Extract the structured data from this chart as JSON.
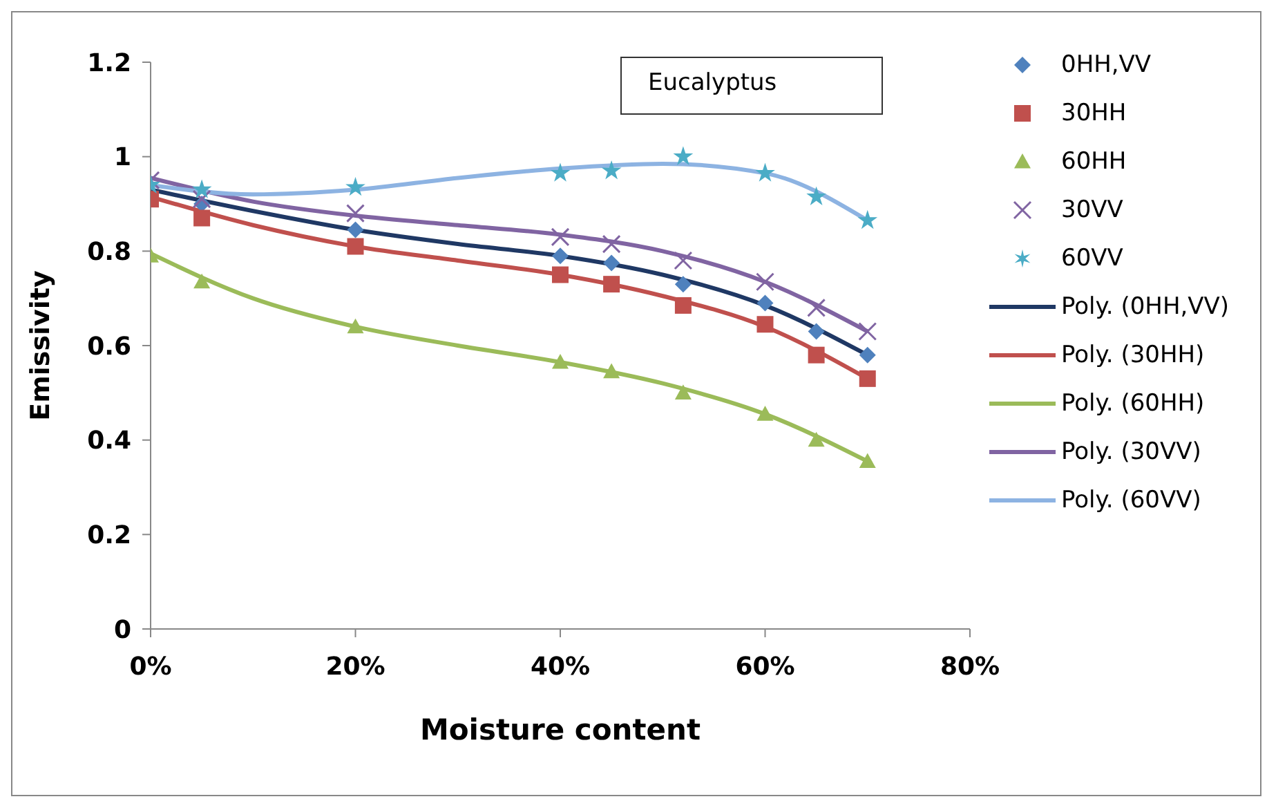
{
  "chart_data": {
    "type": "scatter",
    "xlabel": "Moisture content",
    "ylabel": "Emissivity",
    "annotations": [
      "Eucalyptus"
    ],
    "x": [
      0,
      5,
      20,
      40,
      45,
      52,
      60,
      65,
      70
    ],
    "xlim": [
      0,
      80
    ],
    "xticks": [
      {
        "value": 0,
        "label": "0%"
      },
      {
        "value": 20,
        "label": "20%"
      },
      {
        "value": 40,
        "label": "40%"
      },
      {
        "value": 60,
        "label": "60%"
      },
      {
        "value": 80,
        "label": "80%"
      }
    ],
    "ylim": [
      0,
      1.2
    ],
    "yticks": [
      {
        "value": 0,
        "label": "0"
      },
      {
        "value": 0.2,
        "label": "0.2"
      },
      {
        "value": 0.4,
        "label": "0.4"
      },
      {
        "value": 0.6,
        "label": "0.6"
      },
      {
        "value": 0.8,
        "label": "0.8"
      },
      {
        "value": 1,
        "label": "1"
      },
      {
        "value": 1.2,
        "label": "1.2"
      }
    ],
    "grid": false,
    "legend": "right",
    "series": [
      {
        "name": "0HH,VV",
        "color": "#4f81bd",
        "marker": "diamond",
        "values": [
          null,
          0.9,
          0.845,
          0.79,
          0.775,
          0.73,
          0.69,
          0.63,
          0.58
        ]
      },
      {
        "name": "30HH",
        "color": "#c0504d",
        "marker": "square",
        "values": [
          0.91,
          0.87,
          0.81,
          0.75,
          0.73,
          0.685,
          0.645,
          0.58,
          0.53
        ]
      },
      {
        "name": "60HH",
        "color": "#9bbb59",
        "marker": "triangle",
        "values": [
          0.79,
          0.735,
          0.64,
          0.565,
          0.545,
          0.5,
          0.455,
          0.4,
          0.355
        ]
      },
      {
        "name": "30VV",
        "color": "#8064a2",
        "marker": "cross",
        "values": [
          0.95,
          0.91,
          0.88,
          0.83,
          0.815,
          0.78,
          0.735,
          0.68,
          0.63
        ]
      },
      {
        "name": "60VV",
        "color": "#4bacc6",
        "marker": "star",
        "values": [
          0.94,
          0.93,
          0.935,
          0.965,
          0.97,
          1.0,
          0.965,
          0.915,
          0.865
        ]
      },
      {
        "name": "Poly. (0HH,VV)",
        "type": "line",
        "color": "#1f3864",
        "marker": "none",
        "x": [
          0,
          10,
          20,
          30,
          40,
          50,
          60,
          70
        ],
        "values": [
          0.93,
          0.885,
          0.845,
          0.815,
          0.79,
          0.75,
          0.685,
          0.58
        ]
      },
      {
        "name": "Poly. (30HH)",
        "type": "line",
        "color": "#c0504d",
        "marker": "none",
        "x": [
          0,
          10,
          20,
          30,
          40,
          50,
          60,
          70
        ],
        "values": [
          0.915,
          0.855,
          0.81,
          0.78,
          0.75,
          0.705,
          0.64,
          0.53
        ]
      },
      {
        "name": "Poly. (60HH)",
        "type": "line",
        "color": "#9bbb59",
        "marker": "none",
        "x": [
          0,
          10,
          20,
          30,
          40,
          50,
          60,
          70
        ],
        "values": [
          0.795,
          0.7,
          0.64,
          0.6,
          0.565,
          0.52,
          0.455,
          0.355
        ]
      },
      {
        "name": "Poly. (30VV)",
        "type": "line",
        "color": "#8064a2",
        "marker": "none",
        "x": [
          0,
          10,
          20,
          30,
          40,
          50,
          60,
          70
        ],
        "values": [
          0.955,
          0.905,
          0.875,
          0.855,
          0.835,
          0.8,
          0.735,
          0.63
        ]
      },
      {
        "name": "Poly. (60VV)",
        "type": "line",
        "color": "#8db3e2",
        "marker": "none",
        "x": [
          0,
          10,
          20,
          30,
          40,
          50,
          60,
          70
        ],
        "values": [
          0.94,
          0.92,
          0.93,
          0.955,
          0.975,
          0.985,
          0.965,
          0.865
        ]
      }
    ]
  }
}
